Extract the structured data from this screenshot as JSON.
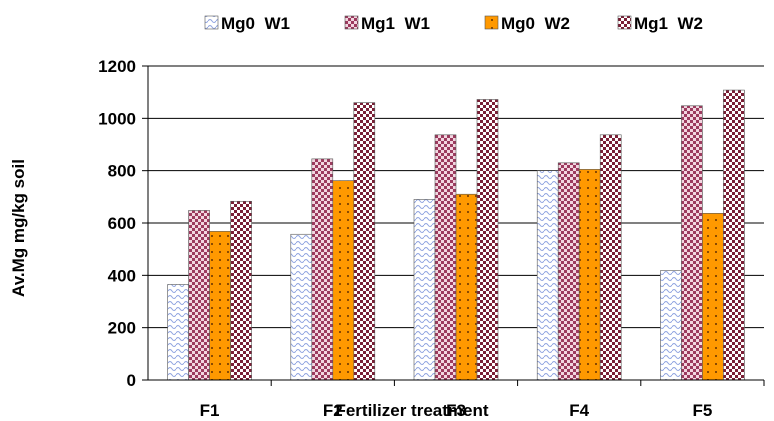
{
  "chart_data": {
    "type": "bar",
    "categories": [
      "F1",
      "F2",
      "F3",
      "F4",
      "F5"
    ],
    "series": [
      {
        "name": "Mg0  W1",
        "values": [
          365,
          557,
          690,
          800,
          418
        ],
        "color": "#b8c6ef",
        "pattern": "wave"
      },
      {
        "name": "Mg1  W1",
        "values": [
          648,
          845,
          937,
          830,
          1048
        ],
        "color": "#9c3a5e",
        "pattern": "check-pink"
      },
      {
        "name": "Mg0  W2",
        "values": [
          568,
          762,
          710,
          805,
          637
        ],
        "color": "#ff9900",
        "pattern": "dots-orange"
      },
      {
        "name": "Mg1  W2",
        "values": [
          683,
          1060,
          1072,
          937,
          1108
        ],
        "color": "#7a1f36",
        "pattern": "check-red"
      }
    ],
    "xlabel": "Fertilizer treatment",
    "ylabel": "Av.Mg mg/kg soil",
    "ylim": [
      0,
      1200
    ],
    "yticks": [
      0,
      200,
      400,
      600,
      800,
      1000,
      1200
    ],
    "grid": true,
    "legend_position": "top"
  }
}
